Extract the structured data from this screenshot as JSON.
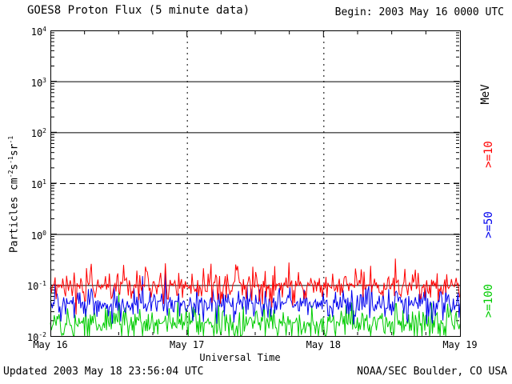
{
  "header": {
    "title": "GOES8 Proton Flux (5 minute data)",
    "begin": "Begin: 2003 May 16 0000 UTC"
  },
  "footer": {
    "updated": "Updated 2003 May 18 23:56:04 UTC",
    "credit": "NOAA/SEC Boulder, CO USA"
  },
  "axis": {
    "x_label": "Universal Time",
    "right_unit": "MeV",
    "y_label": {
      "prefix": "Particles cm",
      "sup1": "-2",
      "mid1": "s",
      "sup2": "-1",
      "mid2": "sr",
      "sup3": "-1"
    }
  },
  "chart_data": {
    "type": "line",
    "title": "GOES8 Proton Flux (5 minute data)",
    "xlabel": "Universal Time",
    "ylabel": "Particles cm^-2 s^-1 sr^-1",
    "x_ticks": [
      "May 16",
      "May 17",
      "May 18",
      "May 19"
    ],
    "x_range_days": [
      0,
      3
    ],
    "y_log_range": [
      -2,
      4
    ],
    "y_tick_exponents": [
      4,
      3,
      2,
      1,
      0,
      -1,
      -2
    ],
    "gridlines": {
      "solid_log": [
        3,
        2,
        0,
        -1
      ],
      "dashed_log": [
        1
      ],
      "vertical_days": [
        1,
        2
      ]
    },
    "grid": true,
    "legend_position": "right",
    "samples": 432,
    "series": [
      {
        "name": ">=10",
        "color": "#ff0000",
        "median_log10": -1.0,
        "spread_log10": 0.45,
        "clip_min_log10": -2.0
      },
      {
        "name": ">=50",
        "color": "#0000ee",
        "median_log10": -1.35,
        "spread_log10": 0.45,
        "clip_min_log10": -2.0
      },
      {
        "name": ">=100",
        "color": "#00cc00",
        "median_log10": -1.75,
        "spread_log10": 0.45,
        "clip_min_log10": -2.0
      }
    ]
  }
}
